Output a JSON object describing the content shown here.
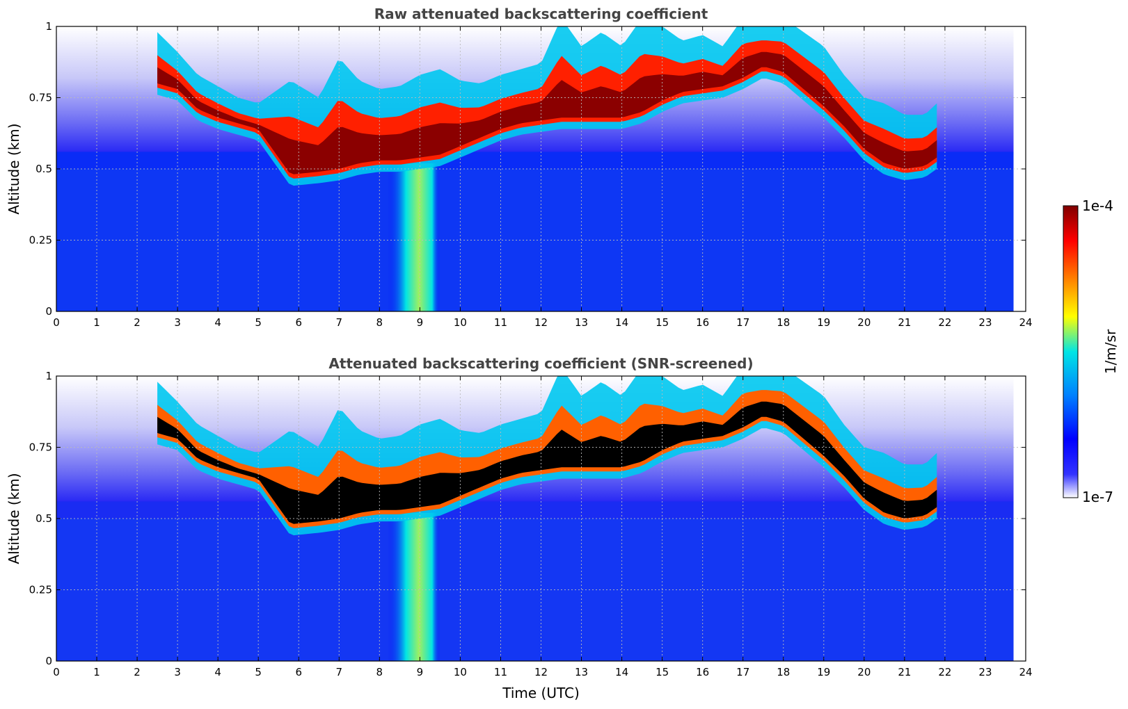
{
  "colormap_stops": [
    "#ffffff",
    "#0000ff",
    "#0080ff",
    "#00e5e5",
    "#ffff00",
    "#ff8000",
    "#ff0000",
    "#800000"
  ],
  "chart_data": [
    {
      "type": "heatmap",
      "title": "Raw attenuated backscattering coefficient",
      "xlabel": "",
      "ylabel": "Altitude (km)",
      "xlim": [
        0,
        24
      ],
      "ylim": [
        0,
        1
      ],
      "x_ticks": [
        0,
        1,
        2,
        3,
        4,
        5,
        6,
        7,
        8,
        9,
        10,
        11,
        12,
        13,
        14,
        15,
        16,
        17,
        18,
        19,
        20,
        21,
        22,
        23,
        24
      ],
      "y_ticks": [
        0,
        0.25,
        0.5,
        0.75,
        1
      ],
      "y_tick_labels": [
        "0",
        "0.25",
        "0.5",
        "0.75",
        "1"
      ],
      "grid": true,
      "data_end_hour": 23.7,
      "colorbar_range": [
        1e-07,
        0.0001
      ],
      "colorbar_unit": "1/m/sr",
      "screened": false
    },
    {
      "type": "heatmap",
      "title": "Attenuated backscattering coefficient (SNR-screened)",
      "xlabel": "Time (UTC)",
      "ylabel": "Altitude (km)",
      "xlim": [
        0,
        24
      ],
      "ylim": [
        0,
        1
      ],
      "x_ticks": [
        0,
        1,
        2,
        3,
        4,
        5,
        6,
        7,
        8,
        9,
        10,
        11,
        12,
        13,
        14,
        15,
        16,
        17,
        18,
        19,
        20,
        21,
        22,
        23,
        24
      ],
      "y_ticks": [
        0,
        0.25,
        0.5,
        0.75,
        1
      ],
      "y_tick_labels": [
        "0",
        "0.25",
        "0.5",
        "0.75",
        "1"
      ],
      "grid": true,
      "data_end_hour": 23.7,
      "colorbar_range": [
        1e-07,
        0.0001
      ],
      "colorbar_unit": "1/m/sr",
      "screened": true
    }
  ],
  "colorbar": {
    "top_label": "1e-4",
    "bottom_label": "1e-7",
    "unit_label": "1/m/sr"
  },
  "cloud_base_km": [
    [
      2.5,
      0.78
    ],
    [
      3.0,
      0.76
    ],
    [
      3.5,
      0.69
    ],
    [
      4.0,
      0.66
    ],
    [
      4.5,
      0.64
    ],
    [
      5.0,
      0.62
    ],
    [
      5.8,
      0.46
    ],
    [
      6.5,
      0.47
    ],
    [
      7.0,
      0.48
    ],
    [
      7.5,
      0.5
    ],
    [
      8.0,
      0.51
    ],
    [
      8.5,
      0.51
    ],
    [
      9.0,
      0.52
    ],
    [
      9.5,
      0.53
    ],
    [
      10.0,
      0.56
    ],
    [
      10.5,
      0.59
    ],
    [
      11.0,
      0.62
    ],
    [
      11.5,
      0.64
    ],
    [
      12.0,
      0.65
    ],
    [
      12.5,
      0.66
    ],
    [
      13.0,
      0.66
    ],
    [
      13.5,
      0.66
    ],
    [
      14.0,
      0.66
    ],
    [
      14.5,
      0.68
    ],
    [
      15.0,
      0.72
    ],
    [
      15.5,
      0.75
    ],
    [
      16.0,
      0.76
    ],
    [
      16.5,
      0.77
    ],
    [
      17.0,
      0.8
    ],
    [
      17.5,
      0.84
    ],
    [
      18.0,
      0.82
    ],
    [
      18.5,
      0.76
    ],
    [
      19.0,
      0.7
    ],
    [
      19.5,
      0.63
    ],
    [
      20.0,
      0.55
    ],
    [
      20.5,
      0.5
    ],
    [
      21.0,
      0.48
    ],
    [
      21.5,
      0.49
    ],
    [
      21.8,
      0.52
    ]
  ],
  "cloud_top_km": [
    [
      2.5,
      0.95
    ],
    [
      3.0,
      0.88
    ],
    [
      3.5,
      0.8
    ],
    [
      4.0,
      0.76
    ],
    [
      4.5,
      0.72
    ],
    [
      5.0,
      0.7
    ],
    [
      5.8,
      0.78
    ],
    [
      6.5,
      0.72
    ],
    [
      7.0,
      0.86
    ],
    [
      7.5,
      0.78
    ],
    [
      8.0,
      0.75
    ],
    [
      8.5,
      0.76
    ],
    [
      9.0,
      0.8
    ],
    [
      9.5,
      0.82
    ],
    [
      10.0,
      0.78
    ],
    [
      10.5,
      0.77
    ],
    [
      11.0,
      0.8
    ],
    [
      11.5,
      0.82
    ],
    [
      12.0,
      0.84
    ],
    [
      12.5,
      1.0
    ],
    [
      13.0,
      0.9
    ],
    [
      13.5,
      0.95
    ],
    [
      14.0,
      0.9
    ],
    [
      14.5,
      1.0
    ],
    [
      15.0,
      0.97
    ],
    [
      15.5,
      0.92
    ],
    [
      16.0,
      0.94
    ],
    [
      16.5,
      0.9
    ],
    [
      17.0,
      1.0
    ],
    [
      17.5,
      1.0
    ],
    [
      18.0,
      1.0
    ],
    [
      18.5,
      0.95
    ],
    [
      19.0,
      0.9
    ],
    [
      19.5,
      0.8
    ],
    [
      20.0,
      0.72
    ],
    [
      20.5,
      0.7
    ],
    [
      21.0,
      0.66
    ],
    [
      21.5,
      0.66
    ],
    [
      21.8,
      0.7
    ]
  ]
}
